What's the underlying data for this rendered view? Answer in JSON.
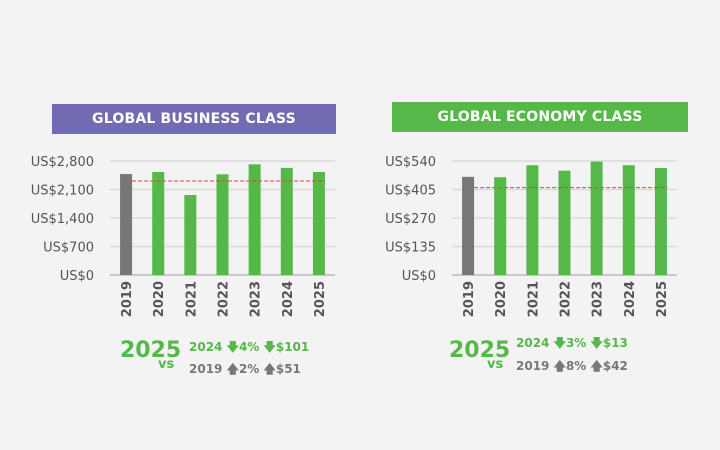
{
  "colors": {
    "purple": "#736bb1",
    "green": "#55b848",
    "grey": "#757877",
    "ref_line": "#e8403a",
    "grid": "#d9d9d9"
  },
  "chart_data": [
    {
      "type": "bar",
      "title": "GLOBAL BUSINESS CLASS",
      "categories": [
        "2019",
        "2020",
        "2021",
        "2022",
        "2023",
        "2024",
        "2025"
      ],
      "values": [
        2479,
        2530,
        1965,
        2473,
        2719,
        2631,
        2530
      ],
      "yticks": [
        "US$0",
        "US$700",
        "US$1,400",
        "US$2,100",
        "US$2,800"
      ],
      "ytick_values": [
        0,
        700,
        1400,
        2100,
        2800
      ],
      "ylim": [
        0,
        2800
      ],
      "reference_line": 2310,
      "grid": true,
      "comparison": {
        "year": "2025",
        "vs": "vs",
        "row1": {
          "label": "2024",
          "pct": "4%",
          "amt": "$101",
          "dir": "down"
        },
        "row2": {
          "label": "2019",
          "pct": "2%",
          "amt": "$51",
          "dir": "up"
        }
      }
    },
    {
      "type": "bar",
      "title": "GLOBAL ECONOMY CLASS",
      "categories": [
        "2019",
        "2020",
        "2021",
        "2022",
        "2023",
        "2024",
        "2025"
      ],
      "values": [
        465,
        463,
        520,
        494,
        537,
        520,
        507
      ],
      "yticks": [
        "US$0",
        "US$135",
        "US$270",
        "US$405",
        "US$540"
      ],
      "ytick_values": [
        0,
        135,
        270,
        405,
        540
      ],
      "ylim": [
        0,
        540
      ],
      "reference_line": 414,
      "grid": true,
      "comparison": {
        "year": "2025",
        "vs": "vs",
        "row1": {
          "label": "2024",
          "pct": "3%",
          "amt": "$13",
          "dir": "down"
        },
        "row2": {
          "label": "2019",
          "pct": "8%",
          "amt": "$42",
          "dir": "up"
        }
      }
    }
  ]
}
